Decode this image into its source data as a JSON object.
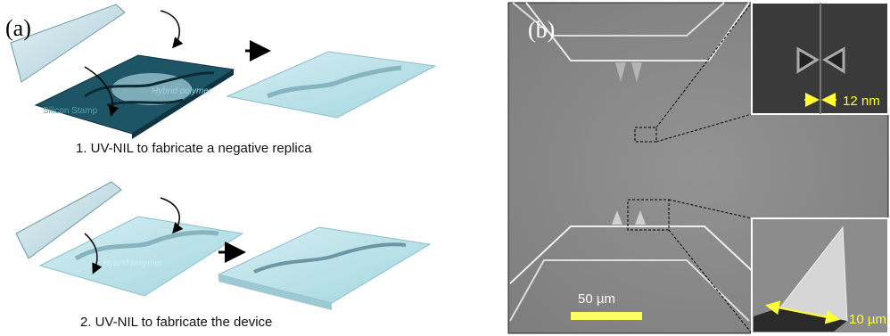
{
  "panel_a": {
    "label": "(a)",
    "step1": {
      "stamp_label": "Silicon Stamp",
      "polymer_label": "Hybrid polymer",
      "caption": "1. UV-NIL to fabricate a negative replica"
    },
    "step2": {
      "polymer_label": "Hybrid polymer",
      "caption": "2. UV-NIL to fabricate the device"
    }
  },
  "panel_b": {
    "label": "(b)",
    "inset_top_scale": "12 nm",
    "main_scale": "50 µm",
    "inset_bottom_scale": "10 µm"
  }
}
